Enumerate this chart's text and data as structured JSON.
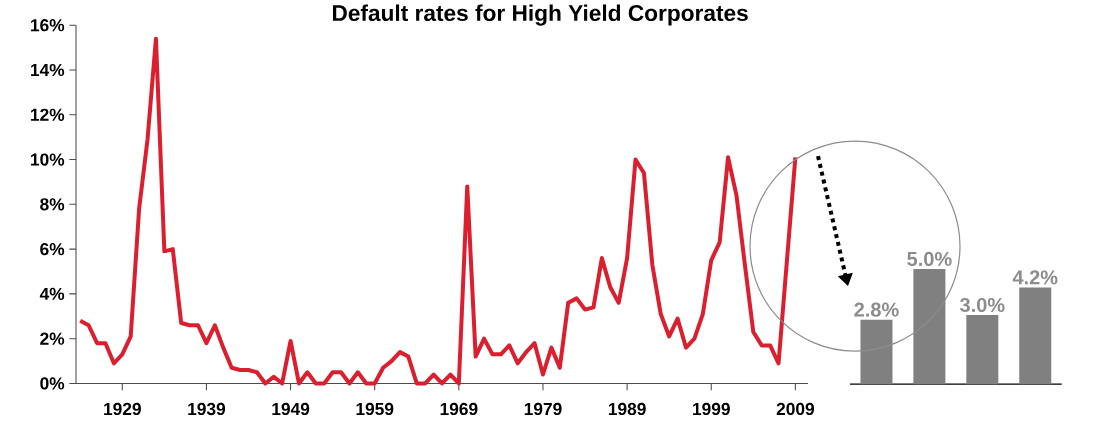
{
  "chart_data": [
    {
      "type": "line",
      "title": "Default rates for High Yield Corporates",
      "color": "#dc1f2e",
      "x": [
        1924,
        1925,
        1926,
        1927,
        1928,
        1929,
        1930,
        1931,
        1932,
        1933,
        1934,
        1935,
        1936,
        1937,
        1938,
        1939,
        1940,
        1941,
        1942,
        1943,
        1944,
        1945,
        1946,
        1947,
        1948,
        1949,
        1950,
        1951,
        1952,
        1953,
        1954,
        1955,
        1956,
        1957,
        1958,
        1959,
        1960,
        1961,
        1962,
        1963,
        1964,
        1965,
        1966,
        1967,
        1968,
        1969,
        1970,
        1971,
        1972,
        1973,
        1974,
        1975,
        1976,
        1977,
        1978,
        1979,
        1980,
        1981,
        1982,
        1983,
        1984,
        1985,
        1986,
        1987,
        1988,
        1989,
        1990,
        1991,
        1992,
        1993,
        1994,
        1995,
        1996,
        1997,
        1998,
        1999,
        2000,
        2001,
        2002,
        2003,
        2004,
        2005,
        2006,
        2007,
        2009
      ],
      "values": [
        2.8,
        2.6,
        1.8,
        1.8,
        0.9,
        1.3,
        2.1,
        7.8,
        10.9,
        15.4,
        5.9,
        6.0,
        2.7,
        2.6,
        2.6,
        1.8,
        2.6,
        1.6,
        0.7,
        0.6,
        0.6,
        0.5,
        0,
        0.3,
        0,
        1.9,
        0,
        0.5,
        0,
        0,
        0.5,
        0.5,
        0,
        0.5,
        0,
        0,
        0.7,
        1.0,
        1.4,
        1.2,
        0,
        0,
        0.4,
        0,
        0.4,
        0,
        8.8,
        1.2,
        2.0,
        1.3,
        1.3,
        1.7,
        0.9,
        1.4,
        1.8,
        0.4,
        1.6,
        0.7,
        3.6,
        3.8,
        3.3,
        3.4,
        5.6,
        4.3,
        3.6,
        5.6,
        10.0,
        9.4,
        5.3,
        3.1,
        2.1,
        2.9,
        1.6,
        2.0,
        3.1,
        5.5,
        6.3,
        10.1,
        8.4,
        5.3,
        2.3,
        1.7,
        1.7,
        0.9,
        10.1
      ],
      "xlim": [
        1923.5,
        2010.5
      ],
      "ylim": [
        0,
        16
      ],
      "xticks": [
        1929,
        1939,
        1949,
        1959,
        1969,
        1979,
        1989,
        1999,
        2009
      ],
      "yticks": [
        {
          "value": 0,
          "label": "0%"
        },
        {
          "value": 2,
          "label": "2%"
        },
        {
          "value": 4,
          "label": "4%"
        },
        {
          "value": 6,
          "label": "6%"
        },
        {
          "value": 8,
          "label": "8%"
        },
        {
          "value": 10,
          "label": "10%"
        },
        {
          "value": 12,
          "label": "12%"
        },
        {
          "value": 14,
          "label": "14%"
        },
        {
          "value": 16,
          "label": "16%"
        }
      ]
    },
    {
      "type": "bar",
      "categories": [
        null,
        null,
        null,
        null
      ],
      "values": [
        2.8,
        5.0,
        3.0,
        4.2
      ],
      "color": "#808080",
      "value_labels": [
        "2.8%",
        "5.0%",
        "3.0%",
        "4.2%"
      ]
    }
  ]
}
